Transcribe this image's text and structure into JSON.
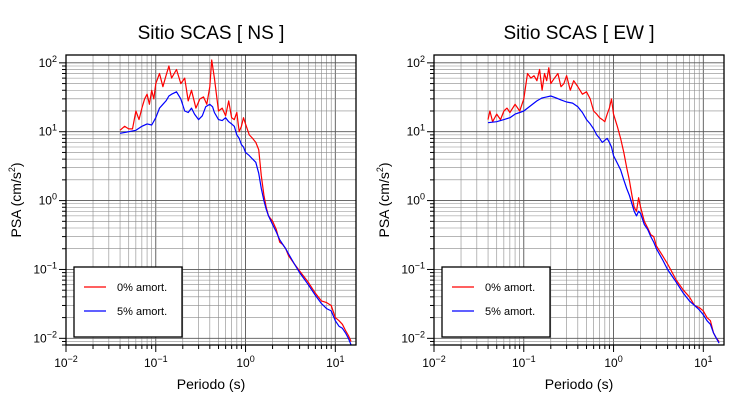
{
  "chart_data": [
    {
      "type": "line",
      "title": "Sitio SCAS [ NS ]",
      "xlabel": "Periodo (s)",
      "ylabel_main": "PSA (cm/s",
      "ylabel_sup": "2",
      "ylabel_end": ")",
      "xscale": "log",
      "yscale": "log",
      "xlim": [
        0.01,
        17
      ],
      "ylim": [
        0.008,
        130
      ],
      "grid": true,
      "legend_position": "bottom-left",
      "x_ticks": [
        {
          "base": "10",
          "exp": "−2"
        },
        {
          "base": "10",
          "exp": "−1"
        },
        {
          "base": "10",
          "exp": "0"
        },
        {
          "base": "10",
          "exp": "1"
        }
      ],
      "y_ticks": [
        {
          "base": "10",
          "exp": "−2"
        },
        {
          "base": "10",
          "exp": "−1"
        },
        {
          "base": "10",
          "exp": "0"
        },
        {
          "base": "10",
          "exp": "1"
        },
        {
          "base": "10",
          "exp": "2"
        }
      ],
      "series": [
        {
          "name": "0% amort.",
          "color": "#ff0000",
          "points": [
            [
              0.04,
              10.5
            ],
            [
              0.045,
              12
            ],
            [
              0.05,
              11
            ],
            [
              0.055,
              11
            ],
            [
              0.06,
              20
            ],
            [
              0.065,
              15
            ],
            [
              0.07,
              22
            ],
            [
              0.075,
              30
            ],
            [
              0.08,
              35
            ],
            [
              0.085,
              25
            ],
            [
              0.09,
              40
            ],
            [
              0.095,
              30
            ],
            [
              0.1,
              50
            ],
            [
              0.11,
              70
            ],
            [
              0.12,
              45
            ],
            [
              0.13,
              65
            ],
            [
              0.14,
              90
            ],
            [
              0.15,
              60
            ],
            [
              0.17,
              80
            ],
            [
              0.19,
              50
            ],
            [
              0.21,
              60
            ],
            [
              0.23,
              28
            ],
            [
              0.25,
              40
            ],
            [
              0.28,
              22
            ],
            [
              0.31,
              30
            ],
            [
              0.34,
              32
            ],
            [
              0.37,
              25
            ],
            [
              0.4,
              45
            ],
            [
              0.42,
              110
            ],
            [
              0.45,
              60
            ],
            [
              0.5,
              20
            ],
            [
              0.55,
              22
            ],
            [
              0.6,
              17
            ],
            [
              0.65,
              28
            ],
            [
              0.7,
              16
            ],
            [
              0.75,
              15
            ],
            [
              0.8,
              19
            ],
            [
              0.85,
              10
            ],
            [
              0.9,
              12
            ],
            [
              0.95,
              16
            ],
            [
              1.0,
              13
            ],
            [
              1.1,
              9
            ],
            [
              1.2,
              8
            ],
            [
              1.3,
              7
            ],
            [
              1.4,
              5.5
            ],
            [
              1.5,
              2.3
            ],
            [
              1.6,
              1.2
            ],
            [
              1.7,
              0.8
            ],
            [
              1.8,
              0.6
            ],
            [
              2.0,
              0.5
            ],
            [
              2.2,
              0.38
            ],
            [
              2.4,
              0.25
            ],
            [
              2.6,
              0.23
            ],
            [
              2.8,
              0.2
            ],
            [
              3.0,
              0.16
            ],
            [
              3.5,
              0.12
            ],
            [
              4.0,
              0.095
            ],
            [
              5.0,
              0.065
            ],
            [
              6.0,
              0.045
            ],
            [
              7.0,
              0.035
            ],
            [
              8.0,
              0.033
            ],
            [
              9.0,
              0.03
            ],
            [
              10.0,
              0.02
            ],
            [
              11.0,
              0.018
            ],
            [
              12.0,
              0.016
            ],
            [
              13.0,
              0.013
            ],
            [
              14.0,
              0.011
            ],
            [
              15.0,
              0.009
            ]
          ]
        },
        {
          "name": "5% amort.",
          "color": "#0000ff",
          "points": [
            [
              0.04,
              9.5
            ],
            [
              0.05,
              10
            ],
            [
              0.06,
              10.5
            ],
            [
              0.07,
              12
            ],
            [
              0.08,
              13
            ],
            [
              0.09,
              12.5
            ],
            [
              0.1,
              16
            ],
            [
              0.11,
              22
            ],
            [
              0.12,
              25
            ],
            [
              0.13,
              28
            ],
            [
              0.14,
              33
            ],
            [
              0.15,
              35
            ],
            [
              0.17,
              38
            ],
            [
              0.19,
              30
            ],
            [
              0.21,
              20
            ],
            [
              0.23,
              19
            ],
            [
              0.25,
              22
            ],
            [
              0.27,
              18
            ],
            [
              0.3,
              15
            ],
            [
              0.33,
              17
            ],
            [
              0.36,
              23
            ],
            [
              0.4,
              25
            ],
            [
              0.43,
              23
            ],
            [
              0.45,
              19
            ],
            [
              0.5,
              15
            ],
            [
              0.55,
              14.5
            ],
            [
              0.6,
              16
            ],
            [
              0.65,
              14
            ],
            [
              0.7,
              13
            ],
            [
              0.75,
              12
            ],
            [
              0.8,
              9
            ],
            [
              0.85,
              8
            ],
            [
              0.9,
              6.5
            ],
            [
              0.95,
              6
            ],
            [
              1.0,
              5
            ],
            [
              1.1,
              4.5
            ],
            [
              1.2,
              4
            ],
            [
              1.3,
              3.6
            ],
            [
              1.4,
              2.5
            ],
            [
              1.5,
              1.5
            ],
            [
              1.6,
              1.0
            ],
            [
              1.7,
              0.75
            ],
            [
              1.8,
              0.6
            ],
            [
              2.0,
              0.45
            ],
            [
              2.2,
              0.35
            ],
            [
              2.4,
              0.27
            ],
            [
              2.6,
              0.23
            ],
            [
              2.8,
              0.2
            ],
            [
              3.0,
              0.17
            ],
            [
              3.5,
              0.12
            ],
            [
              4.0,
              0.09
            ],
            [
              5.0,
              0.06
            ],
            [
              6.0,
              0.042
            ],
            [
              7.0,
              0.032
            ],
            [
              8.0,
              0.027
            ],
            [
              9.0,
              0.025
            ],
            [
              10.0,
              0.018
            ],
            [
              11.0,
              0.015
            ],
            [
              12.0,
              0.014
            ],
            [
              13.0,
              0.012
            ],
            [
              14.0,
              0.01
            ],
            [
              15.0,
              0.008
            ]
          ]
        }
      ]
    },
    {
      "type": "line",
      "title": "Sitio SCAS [ EW ]",
      "xlabel": "Periodo (s)",
      "ylabel_main": "PSA (cm/s",
      "ylabel_sup": "2",
      "ylabel_end": ")",
      "xscale": "log",
      "yscale": "log",
      "xlim": [
        0.01,
        17
      ],
      "ylim": [
        0.008,
        130
      ],
      "grid": true,
      "legend_position": "bottom-left",
      "x_ticks": [
        {
          "base": "10",
          "exp": "−2"
        },
        {
          "base": "10",
          "exp": "−1"
        },
        {
          "base": "10",
          "exp": "0"
        },
        {
          "base": "10",
          "exp": "1"
        }
      ],
      "y_ticks": [
        {
          "base": "10",
          "exp": "−2"
        },
        {
          "base": "10",
          "exp": "−1"
        },
        {
          "base": "10",
          "exp": "0"
        },
        {
          "base": "10",
          "exp": "1"
        },
        {
          "base": "10",
          "exp": "2"
        }
      ],
      "series": [
        {
          "name": "0% amort.",
          "color": "#ff0000",
          "points": [
            [
              0.04,
              15
            ],
            [
              0.042,
              20
            ],
            [
              0.045,
              14
            ],
            [
              0.05,
              18
            ],
            [
              0.055,
              15
            ],
            [
              0.06,
              20
            ],
            [
              0.065,
              22
            ],
            [
              0.07,
              19
            ],
            [
              0.08,
              25
            ],
            [
              0.09,
              20
            ],
            [
              0.1,
              30
            ],
            [
              0.11,
              70
            ],
            [
              0.12,
              60
            ],
            [
              0.13,
              65
            ],
            [
              0.14,
              55
            ],
            [
              0.15,
              80
            ],
            [
              0.16,
              40
            ],
            [
              0.17,
              70
            ],
            [
              0.18,
              55
            ],
            [
              0.19,
              85
            ],
            [
              0.2,
              50
            ],
            [
              0.22,
              60
            ],
            [
              0.24,
              70
            ],
            [
              0.26,
              45
            ],
            [
              0.28,
              50
            ],
            [
              0.3,
              65
            ],
            [
              0.33,
              40
            ],
            [
              0.36,
              55
            ],
            [
              0.4,
              45
            ],
            [
              0.45,
              35
            ],
            [
              0.5,
              38
            ],
            [
              0.55,
              30
            ],
            [
              0.6,
              20
            ],
            [
              0.65,
              18
            ],
            [
              0.7,
              16
            ],
            [
              0.75,
              15
            ],
            [
              0.8,
              14
            ],
            [
              0.85,
              18
            ],
            [
              0.9,
              22
            ],
            [
              0.95,
              30
            ],
            [
              1.0,
              18
            ],
            [
              1.1,
              12
            ],
            [
              1.2,
              8
            ],
            [
              1.3,
              5
            ],
            [
              1.4,
              3
            ],
            [
              1.5,
              2
            ],
            [
              1.6,
              1.2
            ],
            [
              1.7,
              0.8
            ],
            [
              1.8,
              0.7
            ],
            [
              1.9,
              1.1
            ],
            [
              2.0,
              0.8
            ],
            [
              2.2,
              0.5
            ],
            [
              2.4,
              0.4
            ],
            [
              2.6,
              0.32
            ],
            [
              2.8,
              0.3
            ],
            [
              3.0,
              0.22
            ],
            [
              3.5,
              0.16
            ],
            [
              4.0,
              0.12
            ],
            [
              5.0,
              0.07
            ],
            [
              6.0,
              0.05
            ],
            [
              7.0,
              0.04
            ],
            [
              8.0,
              0.03
            ],
            [
              9.0,
              0.028
            ],
            [
              10.0,
              0.025
            ],
            [
              11.0,
              0.02
            ],
            [
              12.0,
              0.018
            ],
            [
              13.0,
              0.012
            ],
            [
              14.0,
              0.01
            ],
            [
              15.0,
              0.009
            ]
          ]
        },
        {
          "name": "5% amort.",
          "color": "#0000ff",
          "points": [
            [
              0.04,
              13.5
            ],
            [
              0.05,
              14
            ],
            [
              0.06,
              15
            ],
            [
              0.07,
              16
            ],
            [
              0.08,
              18
            ],
            [
              0.09,
              19
            ],
            [
              0.1,
              20
            ],
            [
              0.12,
              24
            ],
            [
              0.14,
              28
            ],
            [
              0.16,
              31
            ],
            [
              0.18,
              32
            ],
            [
              0.2,
              33
            ],
            [
              0.23,
              31
            ],
            [
              0.26,
              29
            ],
            [
              0.3,
              27
            ],
            [
              0.35,
              26
            ],
            [
              0.4,
              23
            ],
            [
              0.45,
              19
            ],
            [
              0.5,
              15
            ],
            [
              0.55,
              13
            ],
            [
              0.6,
              11
            ],
            [
              0.65,
              9
            ],
            [
              0.7,
              8
            ],
            [
              0.75,
              7
            ],
            [
              0.8,
              7.5
            ],
            [
              0.85,
              8
            ],
            [
              0.9,
              7
            ],
            [
              0.95,
              6
            ],
            [
              1.0,
              4.5
            ],
            [
              1.1,
              3.5
            ],
            [
              1.2,
              2.8
            ],
            [
              1.3,
              2
            ],
            [
              1.4,
              1.5
            ],
            [
              1.5,
              1.2
            ],
            [
              1.6,
              0.9
            ],
            [
              1.7,
              0.7
            ],
            [
              1.8,
              0.6
            ],
            [
              1.9,
              0.7
            ],
            [
              2.0,
              0.65
            ],
            [
              2.2,
              0.45
            ],
            [
              2.4,
              0.38
            ],
            [
              2.6,
              0.3
            ],
            [
              2.8,
              0.25
            ],
            [
              3.0,
              0.2
            ],
            [
              3.5,
              0.14
            ],
            [
              4.0,
              0.1
            ],
            [
              5.0,
              0.065
            ],
            [
              6.0,
              0.045
            ],
            [
              7.0,
              0.035
            ],
            [
              8.0,
              0.03
            ],
            [
              9.0,
              0.026
            ],
            [
              10.0,
              0.022
            ],
            [
              11.0,
              0.018
            ],
            [
              12.0,
              0.016
            ],
            [
              13.0,
              0.012
            ],
            [
              14.0,
              0.01
            ],
            [
              15.0,
              0.0085
            ]
          ]
        }
      ]
    }
  ]
}
